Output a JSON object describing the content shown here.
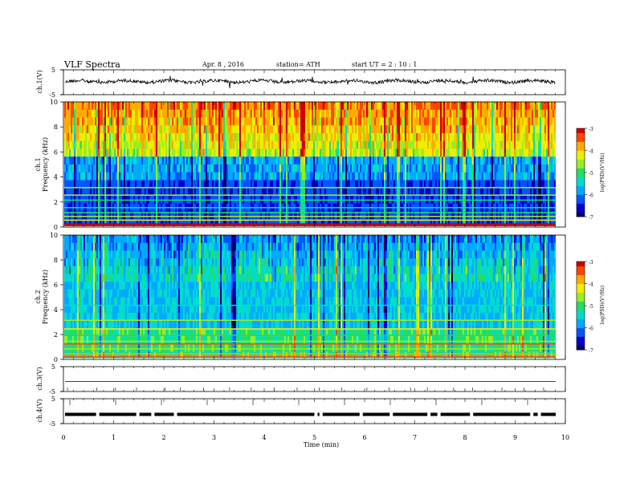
{
  "header": {
    "title": "VLF Spectra",
    "date": "Apr. 8 , 2016",
    "station": "station= ATH",
    "start": "start UT = 2 : 10 : 1"
  },
  "colors": {
    "spectrogram_scale": [
      "#000066",
      "#0000cc",
      "#0055ff",
      "#00aaff",
      "#00ddcc",
      "#22dd66",
      "#99ee22",
      "#eeee00",
      "#ffaa00",
      "#ff4400",
      "#cc0000",
      "#ffffff"
    ],
    "trace": "#000000"
  },
  "chart_data": [
    {
      "type": "line",
      "name": "ch1-waveform",
      "ylabel": "ch.1(V)",
      "ylim": [
        -5,
        5
      ],
      "ytick_labels": [
        "5",
        "-5"
      ],
      "description_values": {
        "baseline": 0.2,
        "noise_amplitude": 1.0
      }
    },
    {
      "type": "heatmap",
      "name": "ch1-spectrogram",
      "ylabel": [
        "ch.1",
        "Frequency (kHz)"
      ],
      "ylim": [
        0,
        10
      ],
      "ytick_labels": [
        "0",
        "2",
        "4",
        "6",
        "8",
        "10"
      ],
      "colorbar": {
        "label": "log(PSD)(V²/Hz)",
        "range": [
          -7,
          -3
        ],
        "tick_labels": [
          "-3",
          "-4",
          "-5",
          "-6",
          "-7"
        ]
      }
    },
    {
      "type": "heatmap",
      "name": "ch2-spectrogram",
      "ylabel": [
        "ch.2",
        "Frequency (kHz)"
      ],
      "ylim": [
        0,
        10
      ],
      "ytick_labels": [
        "0",
        "2",
        "4",
        "6",
        "8",
        "10"
      ],
      "colorbar": {
        "label": "log(PSD)(V²/Hz)",
        "range": [
          -7,
          -3
        ],
        "tick_labels": [
          "-3",
          "-4",
          "-5",
          "-6",
          "-7"
        ]
      }
    },
    {
      "type": "line",
      "name": "ch3-waveform",
      "ylabel": "ch.3(V)",
      "ylim": [
        -5,
        5
      ],
      "ytick_labels": [
        "5",
        "-5"
      ]
    },
    {
      "type": "line",
      "name": "ch4-waveform",
      "ylabel": "ch.4(V)",
      "ylim": [
        -5,
        5
      ],
      "ytick_labels": [
        "5",
        "-5"
      ]
    }
  ],
  "xaxis": {
    "label": "Time (min)",
    "range": [
      0,
      10
    ],
    "tick_labels": [
      "0",
      "1",
      "2",
      "3",
      "4",
      "5",
      "6",
      "7",
      "8",
      "9",
      "10"
    ]
  }
}
